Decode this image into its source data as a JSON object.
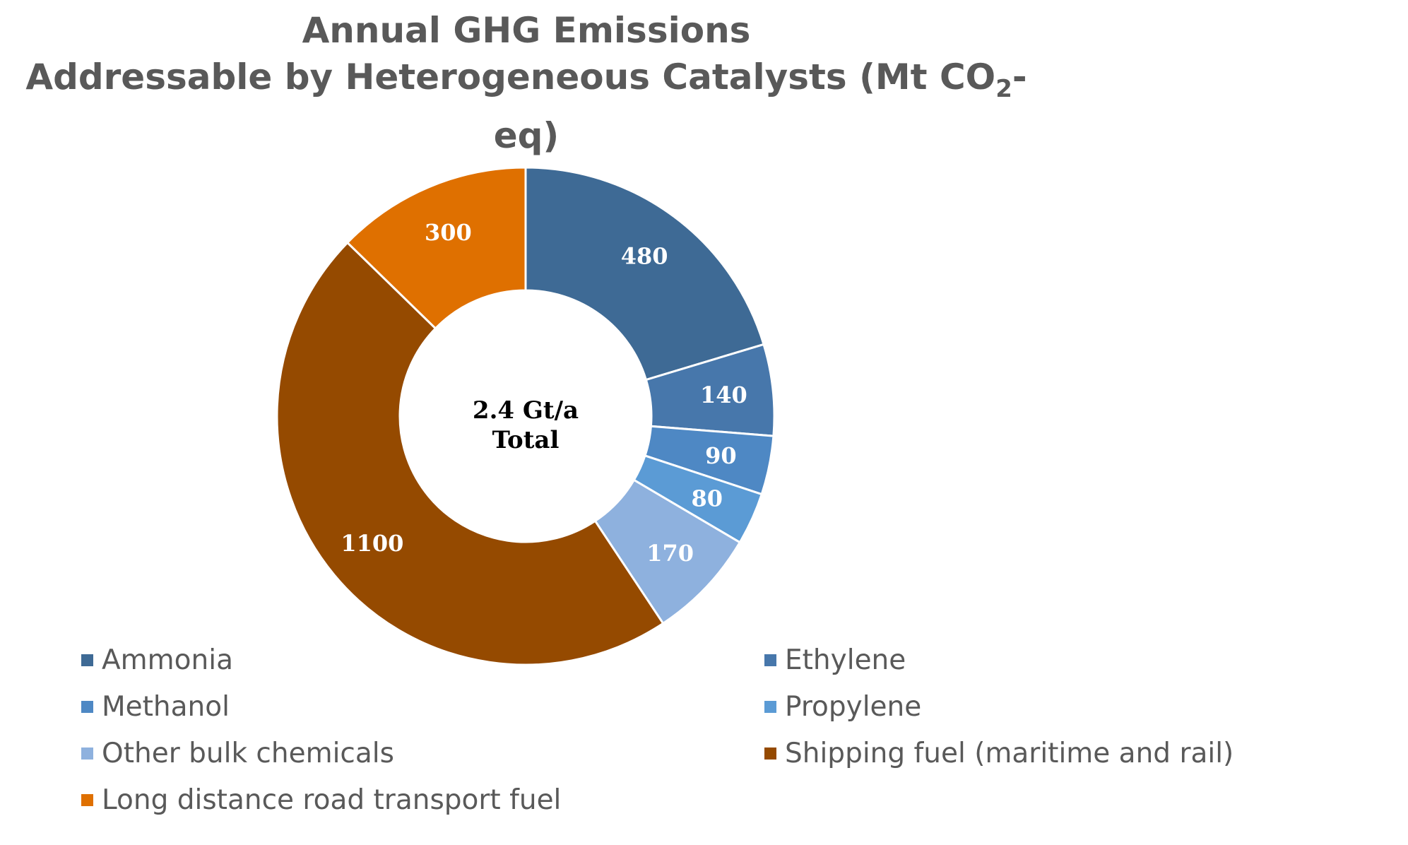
{
  "title": {
    "line1": "Annual GHG Emissions",
    "line2_prefix": "Addressable by Heterogeneous Catalysts (Mt CO",
    "line2_sub": "2",
    "line2_suffix": "-eq)"
  },
  "chart_data": {
    "type": "pie",
    "variant": "donut",
    "title": "Annual GHG Emissions Addressable by Heterogeneous Catalysts (Mt CO2-eq)",
    "center_label": [
      "2.4 Gt/a",
      "Total"
    ],
    "legend_position": "bottom",
    "slices": [
      {
        "label": "Ammonia",
        "value": 480,
        "color": "#3e6a95"
      },
      {
        "label": "Ethylene",
        "value": 140,
        "color": "#4777ab"
      },
      {
        "label": "Methanol",
        "value": 90,
        "color": "#4e88c4"
      },
      {
        "label": "Propylene",
        "value": 80,
        "color": "#5b9bd5"
      },
      {
        "label": "Other bulk chemicals",
        "value": 170,
        "color": "#8eb1de"
      },
      {
        "label": "Shipping fuel (maritime and rail)",
        "value": 1100,
        "color": "#954a00"
      },
      {
        "label": "Long distance road transport fuel",
        "value": 300,
        "color": "#df7000"
      }
    ]
  }
}
